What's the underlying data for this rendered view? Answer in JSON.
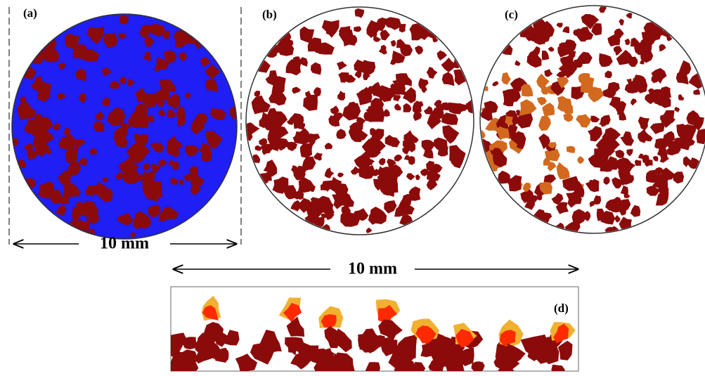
{
  "panels": [
    {
      "label": "(a)"
    },
    {
      "label": "(b)"
    },
    {
      "label": "(c)"
    },
    {
      "label": "(d)"
    }
  ],
  "scale_bars": [
    {
      "label": "10 mm"
    },
    {
      "label": "10 mm"
    }
  ]
}
